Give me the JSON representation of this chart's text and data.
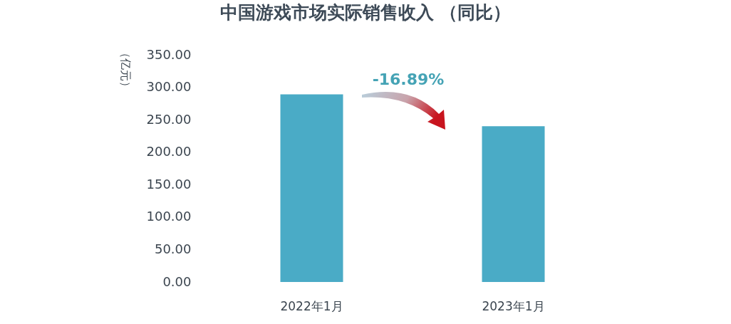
{
  "chart_data": {
    "type": "bar",
    "title": "中国游戏市场实际销售收入 （同比）",
    "ylabel": "（亿元）",
    "categories": [
      "2022年1月",
      "2023年1月"
    ],
    "values": [
      289,
      240
    ],
    "color": "#4aabc6",
    "ylim": [
      0,
      350
    ],
    "yticks": [
      {
        "value": 0,
        "label": "0.00"
      },
      {
        "value": 50,
        "label": "50.00"
      },
      {
        "value": 100,
        "label": "100.00"
      },
      {
        "value": 150,
        "label": "150.00"
      },
      {
        "value": 200,
        "label": "200.00"
      },
      {
        "value": 250,
        "label": "250.00"
      },
      {
        "value": 300,
        "label": "300.00"
      },
      {
        "value": 350,
        "label": "350.00"
      }
    ],
    "annotations": [
      "-16.89%"
    ]
  }
}
